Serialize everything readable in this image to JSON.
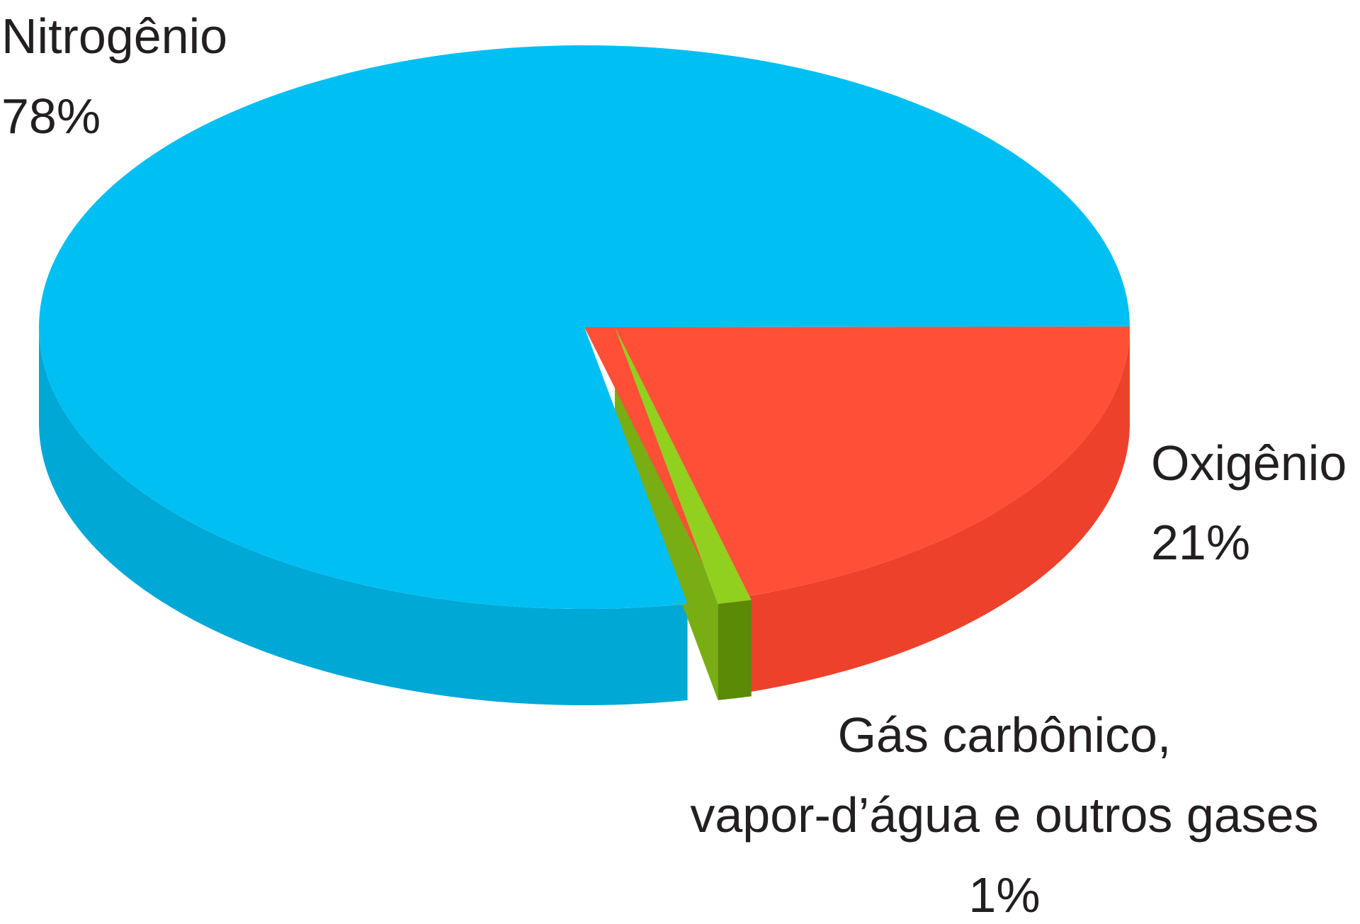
{
  "chart_data": {
    "type": "pie",
    "style": "3d",
    "title": "",
    "slices": [
      {
        "name": "Nitrogênio",
        "value": 78,
        "value_label": "78%",
        "color": "#00c0f3",
        "side_color": "#00a8d6"
      },
      {
        "name": "Oxigênio",
        "value": 21,
        "value_label": "21%",
        "color": "#ff4f37",
        "side_color": "#ee412c"
      },
      {
        "name_lines": [
          "Gás carbônico,",
          "vapor-d’água e outros gases"
        ],
        "value": 1,
        "value_label": "1%",
        "color": "#92d020",
        "side_color": "#5a8a06",
        "exploded": true
      }
    ]
  }
}
